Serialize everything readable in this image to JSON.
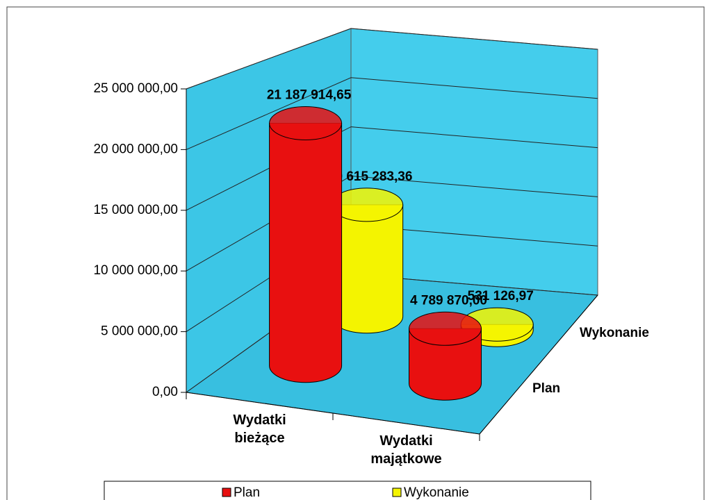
{
  "chart_data": {
    "type": "bar3d",
    "categories": [
      "Wydatki bieżące",
      "Wydatki majątkowe"
    ],
    "series": [
      {
        "name": "Plan",
        "color": "#e81010",
        "values": [
          21187914.65,
          4789870.0
        ],
        "value_labels": [
          "21 187 914,65",
          "4 789 870,00"
        ]
      },
      {
        "name": "Wykonanie",
        "color": "#f4f400",
        "values": [
          10615283.36,
          531126.97
        ],
        "value_labels": [
          "10 615 283,36",
          "531 126,97"
        ]
      }
    ],
    "ylim": [
      0,
      25000000
    ],
    "yticks": [
      {
        "value": 0,
        "label": "0,00"
      },
      {
        "value": 5000000,
        "label": "5 000 000,00"
      },
      {
        "value": 10000000,
        "label": "10 000 000,00"
      },
      {
        "value": 15000000,
        "label": "15 000 000,00"
      },
      {
        "value": 20000000,
        "label": "20 000 000,00"
      },
      {
        "value": 25000000,
        "label": "25 000 000,00"
      }
    ],
    "grid": true,
    "legend": "bottom"
  }
}
